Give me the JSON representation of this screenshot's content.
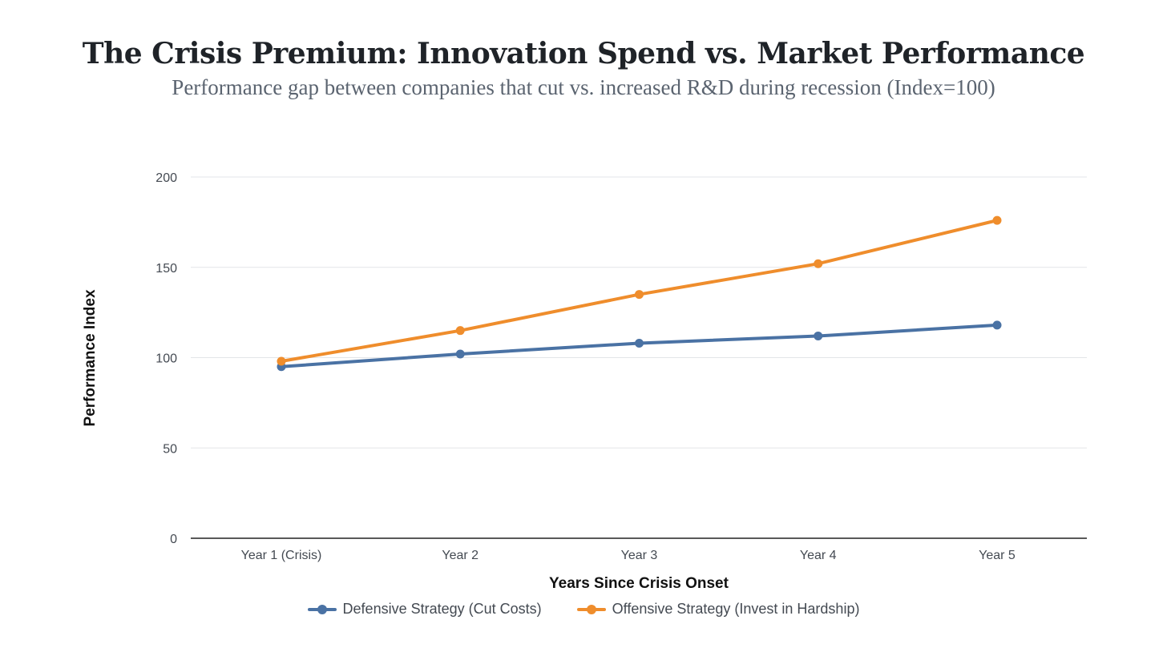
{
  "chart_data": {
    "type": "line",
    "title": "The Crisis Premium: Innovation Spend vs. Market Performance",
    "subtitle": "Performance gap between companies that cut vs. increased R&D during recession (Index=100)",
    "xlabel": "Years Since Crisis Onset",
    "ylabel": "Performance Index",
    "categories": [
      "Year 1 (Crisis)",
      "Year 2",
      "Year 3",
      "Year 4",
      "Year 5"
    ],
    "ylim": [
      0,
      200
    ],
    "yticks": [
      0,
      50,
      100,
      150,
      200
    ],
    "grid": true,
    "legend_position": "bottom",
    "series": [
      {
        "name": "Defensive Strategy (Cut Costs)",
        "color": "#4a72a4",
        "values": [
          95,
          102,
          108,
          112,
          118
        ]
      },
      {
        "name": "Offensive Strategy (Invest in Hardship)",
        "color": "#ef8d2c",
        "values": [
          98,
          115,
          135,
          152,
          176
        ]
      }
    ]
  }
}
